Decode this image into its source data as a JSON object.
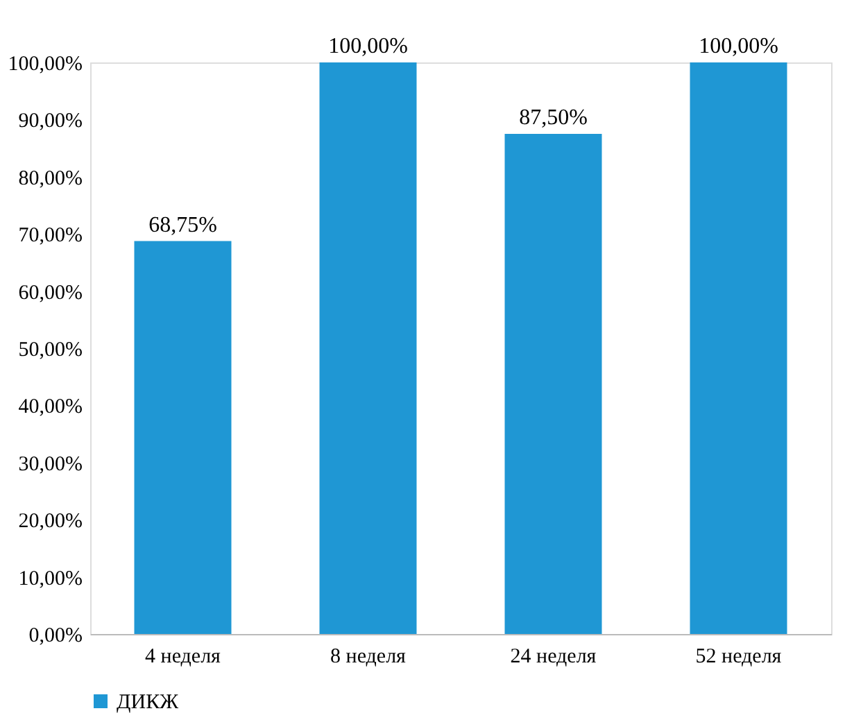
{
  "chart_data": {
    "type": "bar",
    "categories": [
      "4 неделя",
      "8 неделя",
      "24 неделя",
      "52 неделя"
    ],
    "series": [
      {
        "name": "ДИКЖ",
        "color": "#1f97d4",
        "values": [
          68.75,
          100,
          87.5,
          100
        ],
        "value_labels": [
          "68,75%",
          "100,00%",
          "87,50%",
          "100,00%"
        ]
      }
    ],
    "ylim": [
      0,
      100
    ],
    "yticks": [
      {
        "value": 0,
        "label": "0,00%"
      },
      {
        "value": 10,
        "label": "10,00%"
      },
      {
        "value": 20,
        "label": "20,00%"
      },
      {
        "value": 30,
        "label": "30,00%"
      },
      {
        "value": 40,
        "label": "40,00%"
      },
      {
        "value": 50,
        "label": "50,00%"
      },
      {
        "value": 60,
        "label": "60,00%"
      },
      {
        "value": 70,
        "label": "70,00%"
      },
      {
        "value": 80,
        "label": "80,00%"
      },
      {
        "value": 90,
        "label": "90,00%"
      },
      {
        "value": 100,
        "label": "100,00%"
      }
    ],
    "grid": false,
    "legend": "bottom"
  }
}
